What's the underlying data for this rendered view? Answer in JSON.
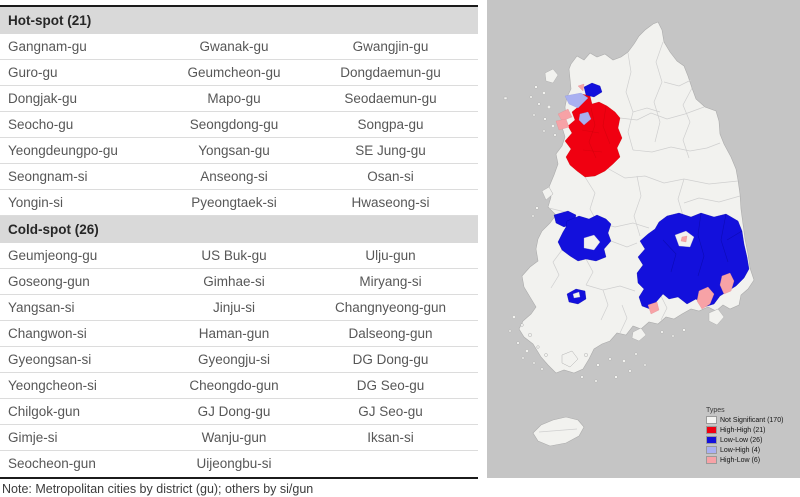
{
  "table": {
    "sections": [
      {
        "header": "Hot-spot (21)",
        "rows": [
          [
            "Gangnam-gu",
            "Gwanak-gu",
            "Gwangjin-gu"
          ],
          [
            "Guro-gu",
            "Geumcheon-gu",
            "Dongdaemun-gu"
          ],
          [
            "Dongjak-gu",
            "Mapo-gu",
            "Seodaemun-gu"
          ],
          [
            "Seocho-gu",
            "Seongdong-gu",
            "Songpa-gu"
          ],
          [
            "Yeongdeungpo-gu",
            "Yongsan-gu",
            "SE Jung-gu"
          ],
          [
            "Seongnam-si",
            "Anseong-si",
            "Osan-si"
          ],
          [
            "Yongin-si",
            "Pyeongtaek-si",
            "Hwaseong-si"
          ]
        ]
      },
      {
        "header": "Cold-spot (26)",
        "rows": [
          [
            "Geumjeong-gu",
            "US Buk-gu",
            "Ulju-gun"
          ],
          [
            "Goseong-gun",
            "Gimhae-si",
            "Miryang-si"
          ],
          [
            "Yangsan-si",
            "Jinju-si",
            "Changnyeong-gun"
          ],
          [
            "Changwon-si",
            "Haman-gun",
            "Dalseong-gun"
          ],
          [
            "Gyeongsan-si",
            "Gyeongju-si",
            "DG Dong-gu"
          ],
          [
            "Yeongcheon-si",
            "Cheongdo-gun",
            "DG Seo-gu"
          ],
          [
            "Chilgok-gun",
            "GJ Dong-gu",
            "GJ Seo-gu"
          ],
          [
            "Gimje-si",
            "Wanju-gun",
            "Iksan-si"
          ],
          [
            "Seocheon-gun",
            "Uijeongbu-si",
            ""
          ]
        ]
      }
    ],
    "note": "Note: Metropolitan cities by district (gu); others by si/gun"
  },
  "map": {
    "legend": {
      "title": "Types",
      "items": [
        {
          "label": "Not Significant (170)",
          "color": "#f4f4f2"
        },
        {
          "label": "High-High (21)",
          "color": "#f00011"
        },
        {
          "label": "Low-Low (26)",
          "color": "#1310dc"
        },
        {
          "label": "Low-High (4)",
          "color": "#a9b0f1"
        },
        {
          "label": "High-Low (6)",
          "color": "#f7a2a6"
        }
      ]
    },
    "colors": {
      "map_background": "#c5c5c5",
      "land": "#f2f2ef",
      "district_border": "#cfcfcf",
      "high_high": "#f00011",
      "low_low": "#1310dc",
      "low_high": "#a9b0f1",
      "high_low": "#f7a2a6"
    }
  }
}
